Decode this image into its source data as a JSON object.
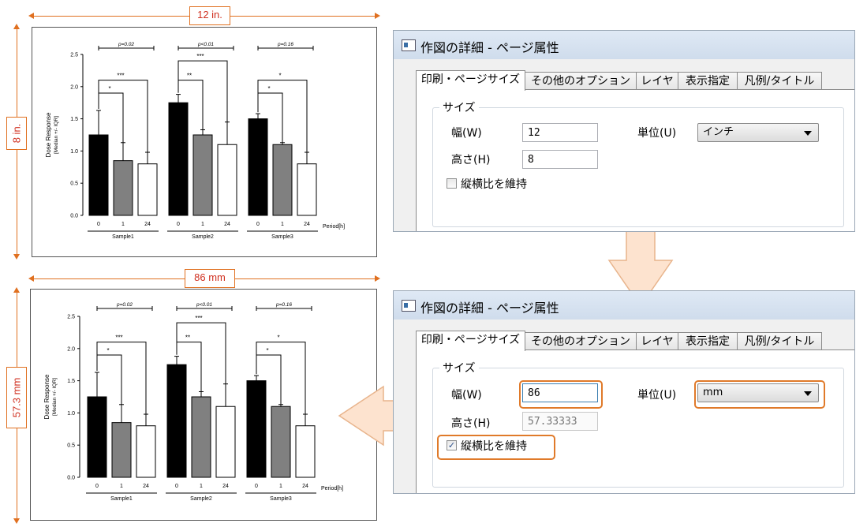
{
  "top": {
    "width_label": "12 in.",
    "height_label": "8 in."
  },
  "bottom": {
    "width_label": "86 mm",
    "height_label": "57.3 mm"
  },
  "chart_data": [
    {
      "type": "bar",
      "title": "",
      "ylabel_line1": "Dose Response",
      "ylabel_line2": "[Median +/- IQR]",
      "xlabel": "Period[h]",
      "ylim": [
        0,
        2.5
      ],
      "yticks": [
        "0.0",
        "0.5",
        "1.0",
        "1.5",
        "2.0",
        "2.5"
      ],
      "groups": [
        "Sample1",
        "Sample2",
        "Sample3"
      ],
      "categories": [
        "0",
        "1",
        "24"
      ],
      "bar_colors": [
        "#000000",
        "#808080",
        "#ffffff"
      ],
      "values": [
        [
          1.25,
          0.85,
          0.8
        ],
        [
          1.75,
          1.25,
          1.1
        ],
        [
          1.5,
          1.1,
          0.8
        ]
      ],
      "errors": [
        [
          0.38,
          0.28,
          0.18
        ],
        [
          0.13,
          0.08,
          0.35
        ],
        [
          0.08,
          0.03,
          0.18
        ]
      ],
      "pvalues": [
        "p=0.02",
        "p<0.01",
        "p=0.16"
      ],
      "brackets": [
        {
          "group": 0,
          "to": 1,
          "label": "*",
          "y": 1.9
        },
        {
          "group": 0,
          "to": 2,
          "label": "***",
          "y": 2.1
        },
        {
          "group": 1,
          "to": 1,
          "label": "**",
          "y": 2.1
        },
        {
          "group": 1,
          "to": 2,
          "label": "***",
          "y": 2.4
        },
        {
          "group": 2,
          "to": 1,
          "label": "*",
          "y": 1.9
        },
        {
          "group": 2,
          "to": 2,
          "label": "*",
          "y": 2.1
        }
      ],
      "grid": false
    },
    {
      "type": "bar",
      "title": "",
      "ylabel_line1": "Dose Response",
      "ylabel_line2": "[Median +/- IQR]",
      "xlabel": "Period[h]",
      "ylim": [
        0,
        2.5
      ],
      "yticks": [
        "0.0",
        "0.5",
        "1.0",
        "1.5",
        "2.0",
        "2.5"
      ],
      "groups": [
        "Sample1",
        "Sample2",
        "Sample3"
      ],
      "categories": [
        "0",
        "1",
        "24"
      ],
      "bar_colors": [
        "#000000",
        "#808080",
        "#ffffff"
      ],
      "values": [
        [
          1.25,
          0.85,
          0.8
        ],
        [
          1.75,
          1.25,
          1.1
        ],
        [
          1.5,
          1.1,
          0.8
        ]
      ],
      "errors": [
        [
          0.38,
          0.28,
          0.18
        ],
        [
          0.13,
          0.08,
          0.35
        ],
        [
          0.08,
          0.03,
          0.18
        ]
      ],
      "pvalues": [
        "p=0.02",
        "p<0.01",
        "p=0.16"
      ],
      "brackets": [
        {
          "group": 0,
          "to": 1,
          "label": "*",
          "y": 1.9
        },
        {
          "group": 0,
          "to": 2,
          "label": "***",
          "y": 2.1
        },
        {
          "group": 1,
          "to": 1,
          "label": "**",
          "y": 2.1
        },
        {
          "group": 1,
          "to": 2,
          "label": "***",
          "y": 2.4
        },
        {
          "group": 2,
          "to": 1,
          "label": "*",
          "y": 1.9
        },
        {
          "group": 2,
          "to": 2,
          "label": "*",
          "y": 2.1
        }
      ],
      "grid": false
    }
  ],
  "dialogs": [
    {
      "title": "作図の詳細 - ページ属性",
      "tabs": [
        "印刷・ページサイズ",
        "その他のオプション",
        "レイヤ",
        "表示指定",
        "凡例/タイトル"
      ],
      "group_label": "サイズ",
      "width_label": "幅(W)",
      "width_value": "12",
      "height_label": "高さ(H)",
      "height_value": "8",
      "unit_label": "単位(U)",
      "unit_value": "インチ",
      "keep_ratio_label": "縦横比を維持",
      "keep_ratio_checked": false
    },
    {
      "title": "作図の詳細 - ページ属性",
      "tabs": [
        "印刷・ページサイズ",
        "その他のオプション",
        "レイヤ",
        "表示指定",
        "凡例/タイトル"
      ],
      "group_label": "サイズ",
      "width_label": "幅(W)",
      "width_value": "86",
      "height_label": "高さ(H)",
      "height_value": "57.33333",
      "unit_label": "単位(U)",
      "unit_value": "mm",
      "keep_ratio_label": "縦横比を維持",
      "keep_ratio_checked": true
    }
  ],
  "colors": {
    "accent": "#e07a2a",
    "arrow_fill": "#fde3cf",
    "dimension": "#d03020"
  }
}
